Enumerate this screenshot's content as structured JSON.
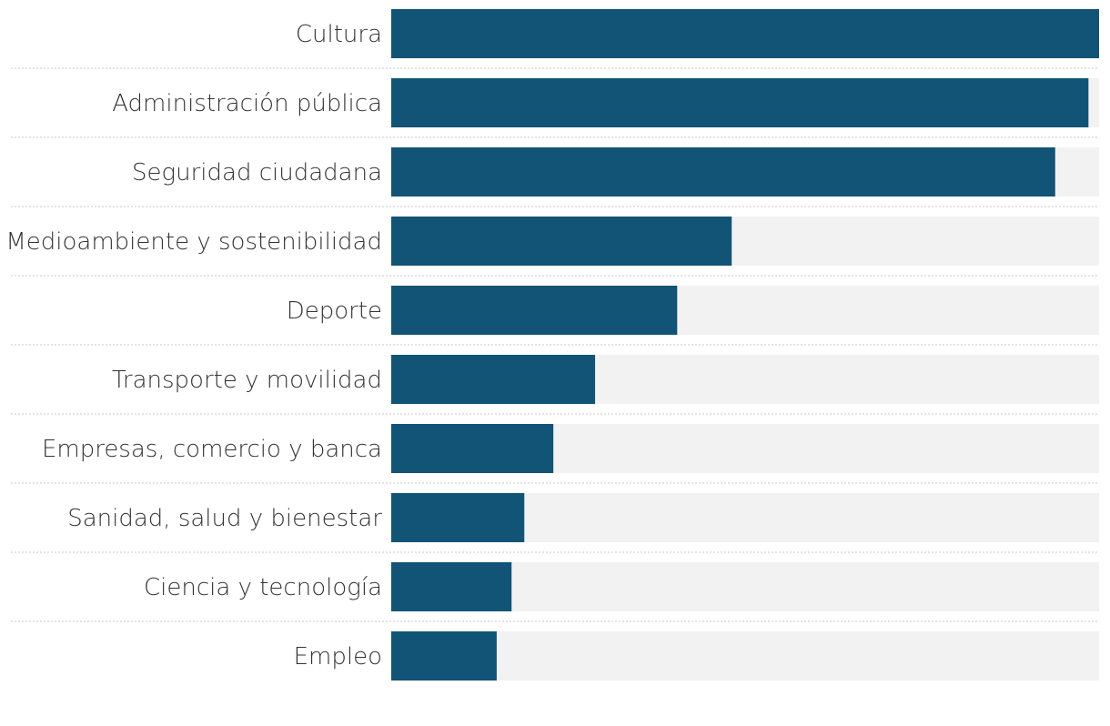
{
  "chart_data": {
    "type": "bar",
    "orientation": "horizontal",
    "categories": [
      "Cultura",
      "Administración pública",
      "Seguridad ciudadana",
      "Medioambiente y sostenibilidad",
      "Deporte",
      "Transporte y movilidad",
      "Empresas, comercio y banca",
      "Sanidad, salud y bienestar",
      "Ciencia y tecnología",
      "Empleo"
    ],
    "values": [
      100,
      98.5,
      93.8,
      48.1,
      40.4,
      28.8,
      22.9,
      18.8,
      17.0,
      14.9
    ],
    "xlim": [
      0,
      100
    ],
    "title": "",
    "xlabel": "",
    "ylabel": "",
    "grid": false,
    "legend": "none",
    "colors": {
      "bar": "#125475",
      "track": "#f2f2f2",
      "separator": "#c8c8c8",
      "label": "#333333"
    }
  }
}
